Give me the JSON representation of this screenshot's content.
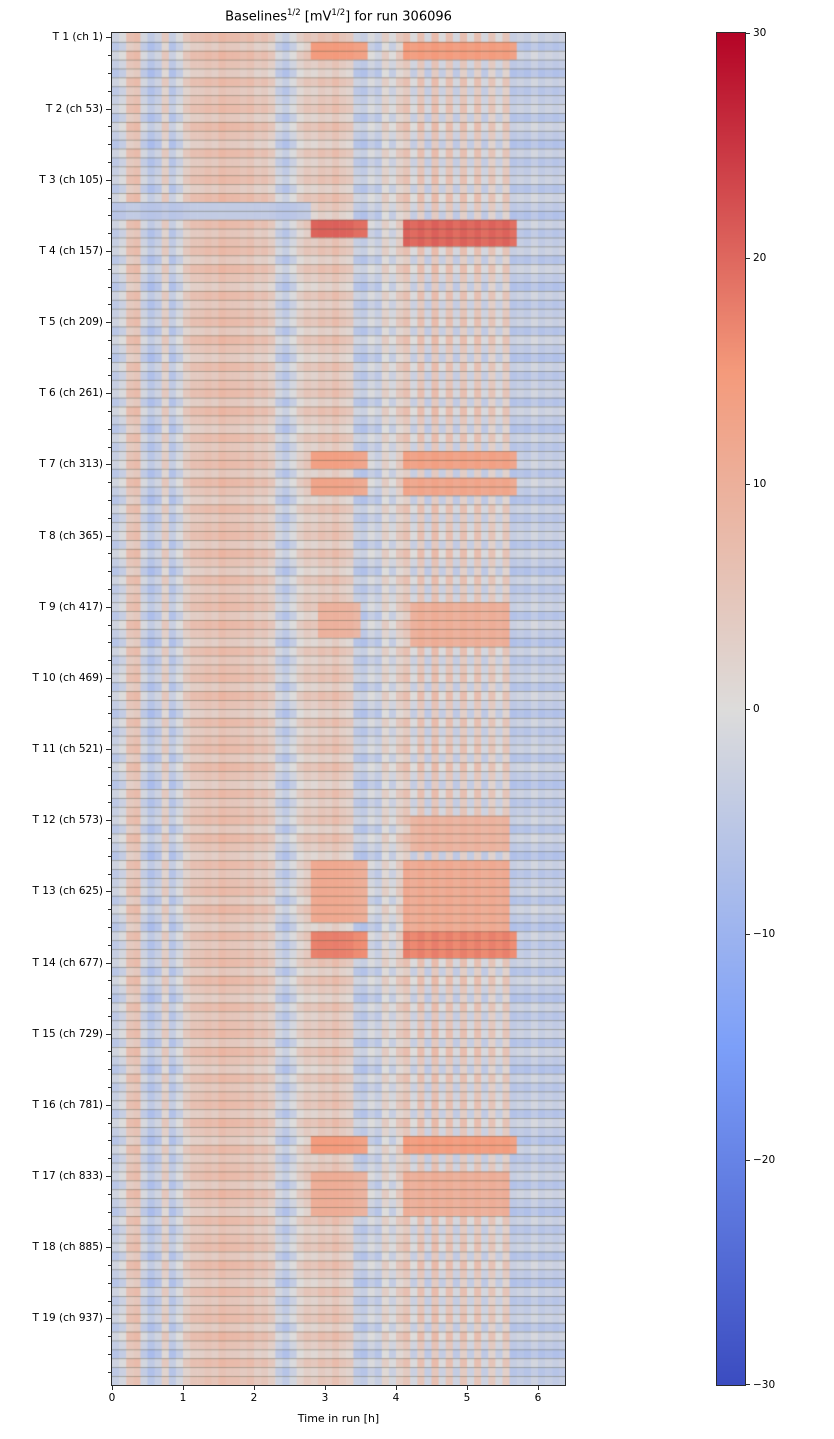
{
  "title": {
    "part1": "Baselines",
    "sup1": "1/2",
    "part2": " [mV",
    "sup2": "1/2",
    "part3": "] for run 306096"
  },
  "chart_data": {
    "type": "heatmap",
    "title": "Baselines^{1/2} [mV^{1/2}] for run 306096",
    "xlabel": "Time in run [h]",
    "x_ticks": [
      0,
      1,
      2,
      3,
      4,
      5,
      6
    ],
    "x_tick_labels": [
      "0",
      "1",
      "2",
      "3",
      "4",
      "5",
      "6"
    ],
    "x_range": [
      0,
      6.38
    ],
    "y_tick_labels": [
      "T 1 (ch 1)",
      "T 2 (ch 53)",
      "T 3 (ch 105)",
      "T 4 (ch 157)",
      "T 5 (ch 209)",
      "T 6 (ch 261)",
      "T 7 (ch 313)",
      "T 8 (ch 365)",
      "T 9 (ch 417)",
      "T 10 (ch 469)",
      "T 11 (ch 521)",
      "T 12 (ch 573)",
      "T 13 (ch 625)",
      "T 14 (ch 677)",
      "T 15 (ch 729)",
      "T 16 (ch 781)",
      "T 17 (ch 833)",
      "T 18 (ch 885)",
      "T 19 (ch 937)"
    ],
    "n_groups": 19,
    "rows_per_group": 8,
    "grid": true,
    "legend_position": "right-colorbar",
    "colormap": "coolwarm",
    "colormap_anchors": [
      {
        "v": -30,
        "color": "#3b4cc0"
      },
      {
        "v": -15,
        "color": "#7c9ff9"
      },
      {
        "v": 0,
        "color": "#dddcdb"
      },
      {
        "v": 15,
        "color": "#f49a7b"
      },
      {
        "v": 30,
        "color": "#b40426"
      }
    ],
    "colorbar": {
      "min": -30,
      "max": 30,
      "ticks": [
        30,
        20,
        10,
        0,
        -10,
        -20,
        -30
      ],
      "tick_labels": [
        "30",
        "20",
        "10",
        "0",
        "−10",
        "−20",
        "−30"
      ]
    },
    "column_x_step": 0.1,
    "column_values": [
      -4,
      -2,
      5,
      6,
      -3,
      -6,
      -4,
      3,
      -5,
      -2,
      3,
      5,
      5,
      6,
      5,
      7,
      6,
      6,
      5,
      6,
      4,
      5,
      3,
      -3,
      -5,
      -2,
      2,
      4,
      3,
      5,
      4,
      6,
      4,
      3,
      -4,
      -5,
      -2,
      -4,
      2,
      -2,
      3,
      5,
      -2,
      5,
      -3,
      6,
      -2,
      5,
      -3,
      5,
      -2,
      5,
      -3,
      4,
      -2,
      4,
      -5,
      -4,
      -5,
      -3,
      -5,
      -4,
      -5,
      -4
    ],
    "row_offset_pattern": [
      1.5,
      -1.5,
      2,
      0,
      -2,
      1.5,
      -1,
      0.5
    ],
    "anomalies": [
      {
        "rows": [
          1,
          2
        ],
        "x": [
          2.85,
          3.65
        ],
        "value": 14
      },
      {
        "rows": [
          1,
          2
        ],
        "x": [
          4.15,
          5.65
        ],
        "value": 14
      },
      {
        "rows": [
          19,
          20
        ],
        "x": [
          0,
          2.8
        ],
        "value": -5
      },
      {
        "rows": [
          21,
          22
        ],
        "x": [
          2.85,
          3.65
        ],
        "value": 20
      },
      {
        "rows": [
          21,
          23
        ],
        "x": [
          4.15,
          5.65
        ],
        "value": 20
      },
      {
        "rows": [
          47,
          48
        ],
        "x": [
          2.85,
          3.6
        ],
        "value": 13
      },
      {
        "rows": [
          47,
          48
        ],
        "x": [
          4.15,
          5.65
        ],
        "value": 13
      },
      {
        "rows": [
          50,
          51
        ],
        "x": [
          2.85,
          3.6
        ],
        "value": 12
      },
      {
        "rows": [
          50,
          51
        ],
        "x": [
          4.15,
          5.65
        ],
        "value": 12
      },
      {
        "rows": [
          64,
          67
        ],
        "x": [
          2.9,
          3.5
        ],
        "value": 9
      },
      {
        "rows": [
          64,
          68
        ],
        "x": [
          4.2,
          5.6
        ],
        "value": 10
      },
      {
        "rows": [
          88,
          91
        ],
        "x": [
          4.2,
          5.6
        ],
        "value": 9
      },
      {
        "rows": [
          93,
          99
        ],
        "x": [
          2.85,
          3.6
        ],
        "value": 11
      },
      {
        "rows": [
          93,
          100
        ],
        "x": [
          4.15,
          5.6
        ],
        "value": 11
      },
      {
        "rows": [
          101,
          103
        ],
        "x": [
          2.85,
          3.65
        ],
        "value": 17
      },
      {
        "rows": [
          101,
          103
        ],
        "x": [
          4.15,
          5.7
        ],
        "value": 17
      },
      {
        "rows": [
          124,
          125
        ],
        "x": [
          2.85,
          3.6
        ],
        "value": 14
      },
      {
        "rows": [
          124,
          125
        ],
        "x": [
          4.15,
          5.65
        ],
        "value": 14
      },
      {
        "rows": [
          128,
          132
        ],
        "x": [
          2.85,
          3.6
        ],
        "value": 10
      },
      {
        "rows": [
          128,
          132
        ],
        "x": [
          4.15,
          5.6
        ],
        "value": 10
      }
    ]
  }
}
